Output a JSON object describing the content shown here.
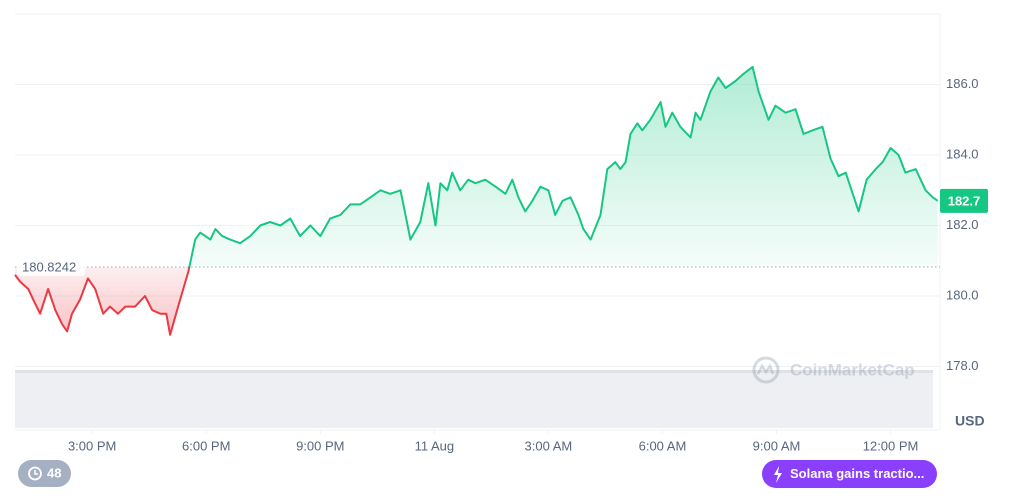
{
  "chart_data": {
    "type": "line",
    "x": [
      12.97,
      13.11,
      13.32,
      13.45,
      13.63,
      13.84,
      14.03,
      14.21,
      14.34,
      14.47,
      14.68,
      14.89,
      15.08,
      15.29,
      15.47,
      15.68,
      15.87,
      16.13,
      16.39,
      16.58,
      16.79,
      16.95,
      17.05,
      17.26,
      17.53,
      17.71,
      17.84,
      18.11,
      18.24,
      18.42,
      18.63,
      18.89,
      19.16,
      19.42,
      19.68,
      19.95,
      20.21,
      20.47,
      20.74,
      21.0,
      21.26,
      21.53,
      21.79,
      22.05,
      22.32,
      22.58,
      22.84,
      23.11,
      23.24,
      23.37,
      23.63,
      23.84,
      24.03,
      24.16,
      24.34,
      24.47,
      24.68,
      24.89,
      25.08,
      25.34,
      25.61,
      25.87,
      26.05,
      26.21,
      26.39,
      26.58,
      26.79,
      27.0,
      27.18,
      27.37,
      27.58,
      27.79,
      27.92,
      28.11,
      28.37,
      28.55,
      28.76,
      28.89,
      29.03,
      29.16,
      29.34,
      29.47,
      29.68,
      29.95,
      30.08,
      30.26,
      30.47,
      30.74,
      30.87,
      31.0,
      31.26,
      31.47,
      31.66,
      31.92,
      32.13,
      32.37,
      32.53,
      32.79,
      32.97,
      33.24,
      33.5,
      33.71,
      33.95,
      34.21,
      34.42,
      34.63,
      34.82,
      35.16,
      35.37,
      35.61,
      35.79,
      36.0,
      36.21,
      36.39,
      36.66,
      36.92,
      37.11,
      37.24
    ],
    "values": [
      180.6,
      180.4,
      180.2,
      179.9,
      179.5,
      180.2,
      179.6,
      179.2,
      179.0,
      179.5,
      179.9,
      180.5,
      180.2,
      179.5,
      179.7,
      179.5,
      179.7,
      179.7,
      180.0,
      179.6,
      179.5,
      179.5,
      178.9,
      179.7,
      180.7,
      181.6,
      181.8,
      181.6,
      181.9,
      181.7,
      181.6,
      181.5,
      181.7,
      182.0,
      182.1,
      182.0,
      182.2,
      181.7,
      182.0,
      181.7,
      182.2,
      182.3,
      182.6,
      182.6,
      182.8,
      183.0,
      182.9,
      183.0,
      182.3,
      181.6,
      182.1,
      183.2,
      182.0,
      183.2,
      183.0,
      183.5,
      183.0,
      183.3,
      183.2,
      183.3,
      183.1,
      182.9,
      183.3,
      182.8,
      182.4,
      182.7,
      183.1,
      183.0,
      182.3,
      182.7,
      182.8,
      182.3,
      181.9,
      181.6,
      182.3,
      183.6,
      183.8,
      183.6,
      183.8,
      184.6,
      184.9,
      184.7,
      185.0,
      185.5,
      184.8,
      185.2,
      184.8,
      184.5,
      185.2,
      185.0,
      185.8,
      186.2,
      185.9,
      186.1,
      186.3,
      186.5,
      185.8,
      185.0,
      185.4,
      185.2,
      185.3,
      184.6,
      184.7,
      184.8,
      183.9,
      183.4,
      183.5,
      182.4,
      183.3,
      183.6,
      183.8,
      184.2,
      184.0,
      183.5,
      183.6,
      183.0,
      182.8,
      182.7
    ],
    "up_color": "#16c784",
    "down_color": "#ea3943",
    "baseline": 180.8242,
    "last_value": 182.7,
    "xlim": [
      12.97,
      37.3
    ],
    "xticks": [
      {
        "value": 15,
        "label": "3:00 PM"
      },
      {
        "value": 18,
        "label": "6:00 PM"
      },
      {
        "value": 21,
        "label": "9:00 PM"
      },
      {
        "value": 24,
        "label": "11 Aug"
      },
      {
        "value": 27,
        "label": "3:00 AM"
      },
      {
        "value": 30,
        "label": "6:00 AM"
      },
      {
        "value": 33,
        "label": "9:00 AM"
      },
      {
        "value": 36,
        "label": "12:00 PM"
      }
    ],
    "ylim": [
      176.2,
      188.0
    ],
    "yticks": [
      {
        "value": 178,
        "label": "178.0"
      },
      {
        "value": 180,
        "label": "180.0"
      },
      {
        "value": 182,
        "label": "182.0"
      },
      {
        "value": 184,
        "label": "184.0"
      },
      {
        "value": 186,
        "label": "186.0"
      }
    ],
    "y_unit": "USD",
    "grid": true,
    "watermark": "CoinMarketCap",
    "badges": {
      "count": "48",
      "news": "Solana gains tractio..."
    }
  }
}
